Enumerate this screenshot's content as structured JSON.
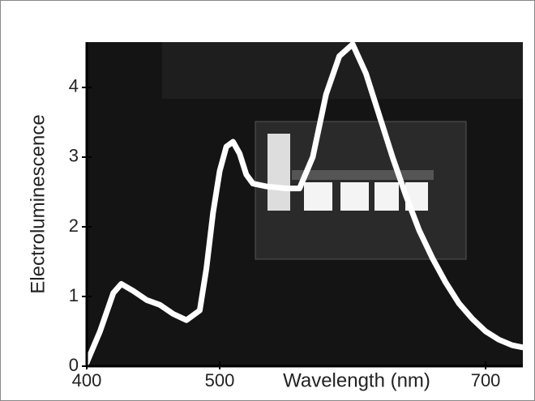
{
  "chart_data": {
    "type": "line",
    "x_label": "Wavelength (nm)",
    "y_label": "Electroluminescence",
    "x": [
      400,
      410,
      420,
      426,
      435,
      445,
      455,
      465,
      475,
      485,
      490,
      495,
      500,
      505,
      510,
      515,
      520,
      525,
      535,
      550,
      560,
      570,
      580,
      590,
      600,
      610,
      620,
      630,
      640,
      650,
      660,
      670,
      680,
      690,
      700,
      710,
      720,
      728
    ],
    "series": [
      {
        "color": "#ffffff",
        "values": [
          0.05,
          0.5,
          1.05,
          1.18,
          1.08,
          0.95,
          0.88,
          0.75,
          0.66,
          0.8,
          1.4,
          2.2,
          2.8,
          3.15,
          3.22,
          3.05,
          2.75,
          2.62,
          2.58,
          2.55,
          2.55,
          3.0,
          3.9,
          4.45,
          4.62,
          4.2,
          3.6,
          3.0,
          2.45,
          1.95,
          1.55,
          1.2,
          0.9,
          0.68,
          0.5,
          0.38,
          0.3,
          0.27
        ]
      }
    ],
    "xlim": [
      400,
      728
    ],
    "xticks": [
      400,
      500,
      700
    ],
    "ylim": [
      0,
      4.65
    ],
    "yticks": [
      0,
      1,
      2,
      3,
      4
    ]
  }
}
